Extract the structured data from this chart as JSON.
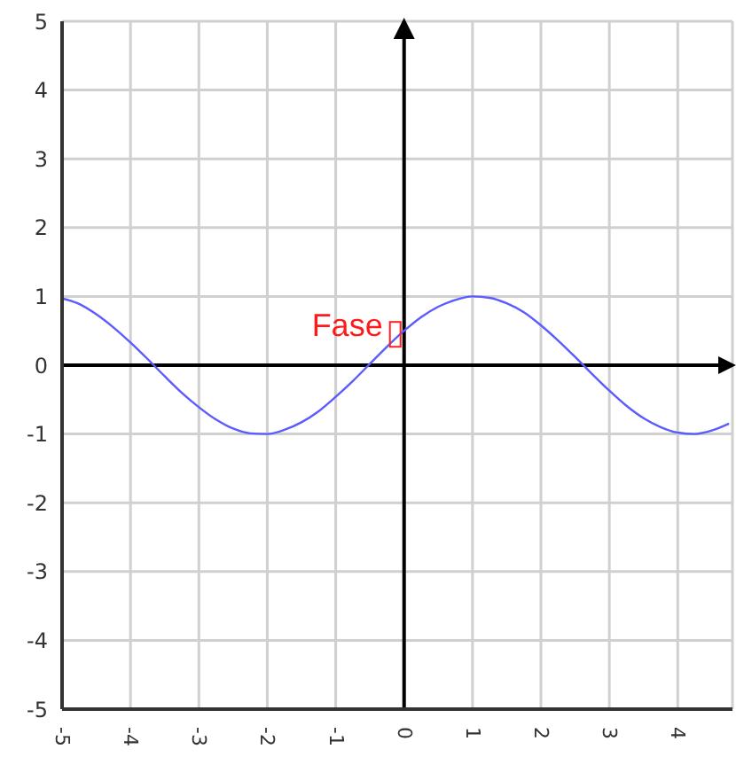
{
  "chart_data": {
    "type": "line",
    "x": [
      -5,
      -4.75,
      -4.5,
      -4.25,
      -4,
      -3.75,
      -3.5,
      -3.25,
      -3,
      -2.75,
      -2.5,
      -2.25,
      -2,
      -1.75,
      -1.5,
      -1.25,
      -1,
      -0.75,
      -0.5,
      -0.25,
      0,
      0.25,
      0.5,
      0.75,
      1,
      1.25,
      1.5,
      1.75,
      2,
      2.25,
      2.5,
      2.75,
      3,
      3.25,
      3.5,
      3.75,
      4,
      4.25,
      4.5,
      4.75
    ],
    "series": [
      {
        "color": "#5b5bff",
        "values": [
          0.97,
          0.89,
          0.74,
          0.55,
          0.33,
          0.09,
          -0.16,
          -0.4,
          -0.61,
          -0.79,
          -0.92,
          -0.99,
          -1,
          -0.94,
          -0.83,
          -0.67,
          -0.46,
          -0.23,
          0.02,
          0.27,
          0.5,
          0.7,
          0.85,
          0.95,
          1,
          0.98,
          0.9,
          0.77,
          0.58,
          0.36,
          0.12,
          -0.13,
          -0.37,
          -0.59,
          -0.77,
          -0.9,
          -0.98,
          -1,
          -0.95,
          -0.85
        ]
      }
    ],
    "xlim": [
      -5,
      4.8
    ],
    "xticks": [
      -5,
      -4,
      -3,
      -2,
      -1,
      0,
      1,
      2,
      3,
      4
    ],
    "ylim": [
      -5,
      5
    ],
    "yticks": [
      -5,
      -4,
      -3,
      -2,
      -1,
      0,
      1,
      2,
      3,
      4,
      5
    ],
    "grid": true,
    "marker": "none",
    "line_style": "solid",
    "legend": false,
    "annotations": [
      {
        "text": "Fase",
        "x": 0,
        "y": 0.5
      }
    ]
  }
}
